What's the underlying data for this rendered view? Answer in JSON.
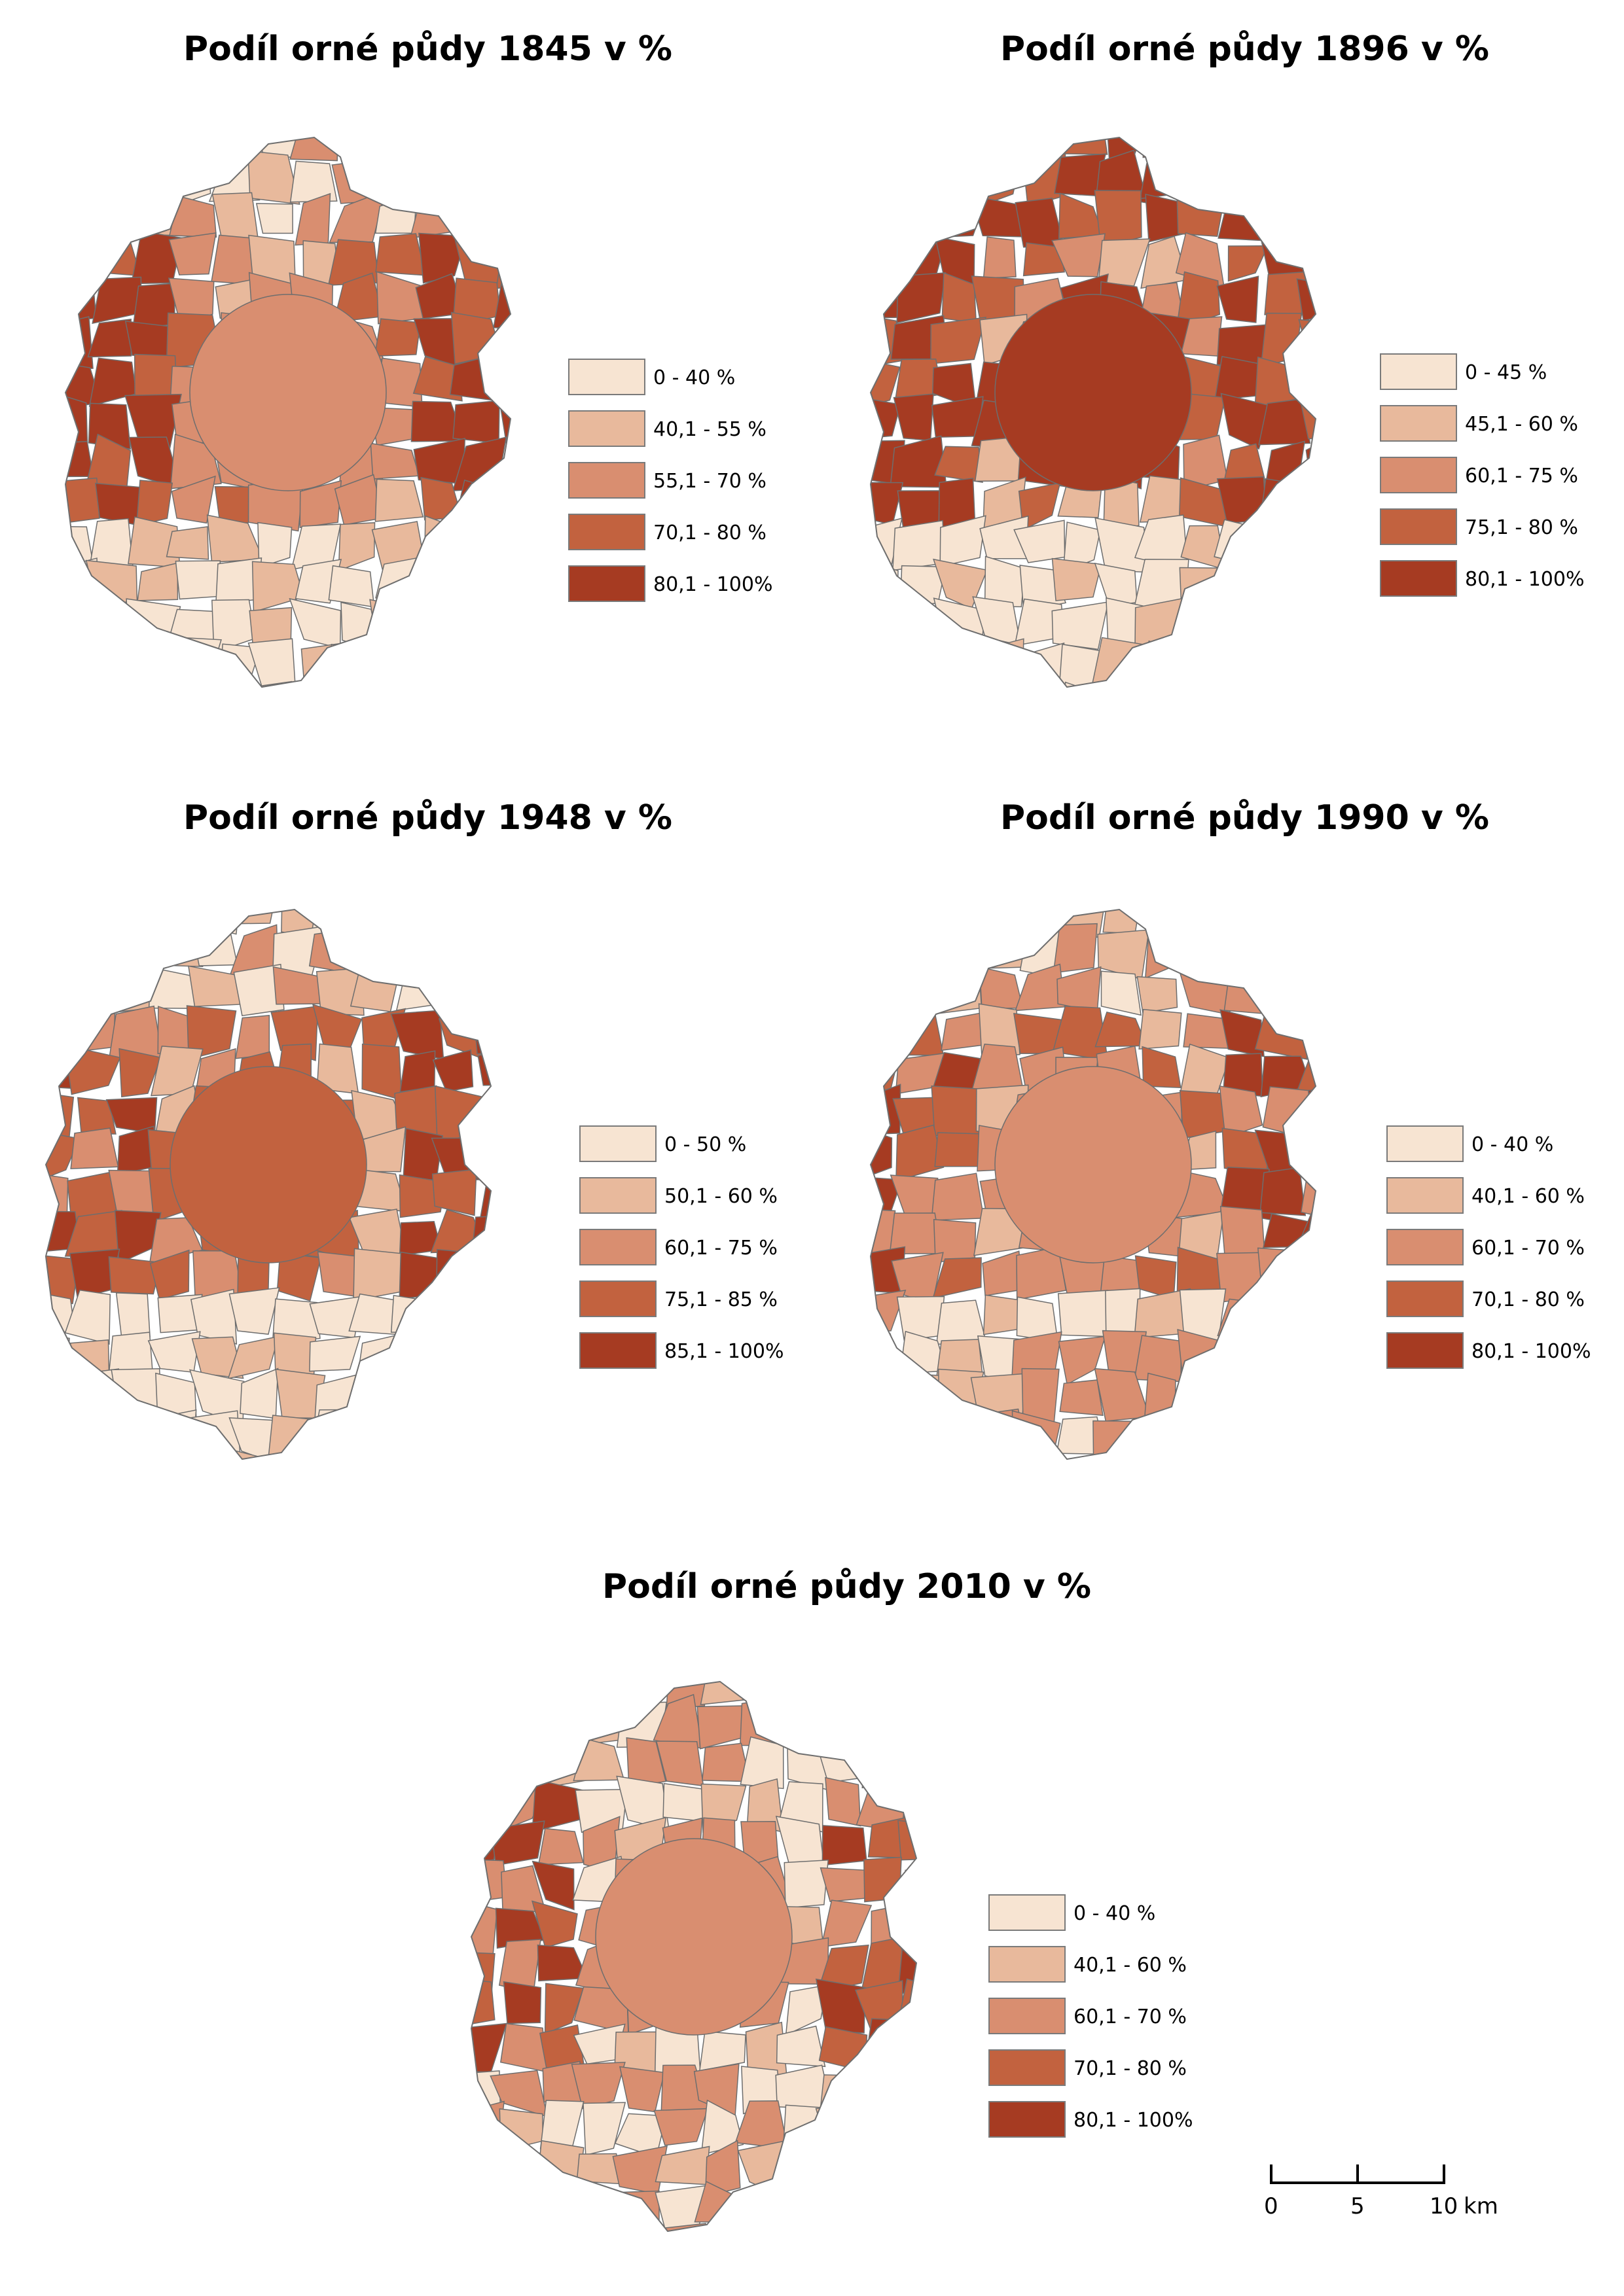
{
  "maps": [
    {
      "title": "Podíl orné půdy 1845 v %",
      "legend": [
        {
          "label": "0 - 40 %",
          "color": "#f7e4d2"
        },
        {
          "label": "40,1 - 55 %",
          "color": "#e8b99c"
        },
        {
          "label": "55,1 - 70 %",
          "color": "#d98e70"
        },
        {
          "label": "70,1 - 80 %",
          "color": "#c2623f"
        },
        {
          "label": "80,1 - 100%",
          "color": "#a63b22"
        }
      ]
    },
    {
      "title": "Podíl orné půdy 1896 v %",
      "legend": [
        {
          "label": "0 - 45 %",
          "color": "#f7e4d2"
        },
        {
          "label": "45,1 - 60 %",
          "color": "#e8b99c"
        },
        {
          "label": "60,1 - 75 %",
          "color": "#d98e70"
        },
        {
          "label": "75,1 - 80 %",
          "color": "#c2623f"
        },
        {
          "label": "80,1 - 100%",
          "color": "#a63b22"
        }
      ]
    },
    {
      "title": "Podíl orné půdy 1948 v %",
      "legend": [
        {
          "label": "0 - 50 %",
          "color": "#f7e4d2"
        },
        {
          "label": "50,1 - 60 %",
          "color": "#e8b99c"
        },
        {
          "label": "60,1 - 75 %",
          "color": "#d98e70"
        },
        {
          "label": "75,1 - 85 %",
          "color": "#c2623f"
        },
        {
          "label": "85,1 - 100%",
          "color": "#a63b22"
        }
      ]
    },
    {
      "title": "Podíl orné půdy 1990 v %",
      "legend": [
        {
          "label": "0 - 40 %",
          "color": "#f7e4d2"
        },
        {
          "label": "40,1 - 60 %",
          "color": "#e8b99c"
        },
        {
          "label": "60,1 - 70 %",
          "color": "#d98e70"
        },
        {
          "label": "70,1 - 80 %",
          "color": "#c2623f"
        },
        {
          "label": "80,1 - 100%",
          "color": "#a63b22"
        }
      ]
    },
    {
      "title": "Podíl orné půdy 2010 v %",
      "legend": [
        {
          "label": "0 - 40 %",
          "color": "#f7e4d2"
        },
        {
          "label": "40,1 - 60 %",
          "color": "#e8b99c"
        },
        {
          "label": "60,1 - 70 %",
          "color": "#d98e70"
        },
        {
          "label": "70,1 - 80 %",
          "color": "#c2623f"
        },
        {
          "label": "80,1 - 100%",
          "color": "#a63b22"
        }
      ]
    }
  ],
  "scale_bar": {
    "ticks": [
      "0",
      "5",
      "10"
    ],
    "unit": "km"
  },
  "colors": {
    "boundary": "#6e6e6e",
    "class_1": "#f7e4d2",
    "class_2": "#e8b99c",
    "class_3": "#d98e70",
    "class_4": "#c2623f",
    "class_5": "#a63b22"
  }
}
